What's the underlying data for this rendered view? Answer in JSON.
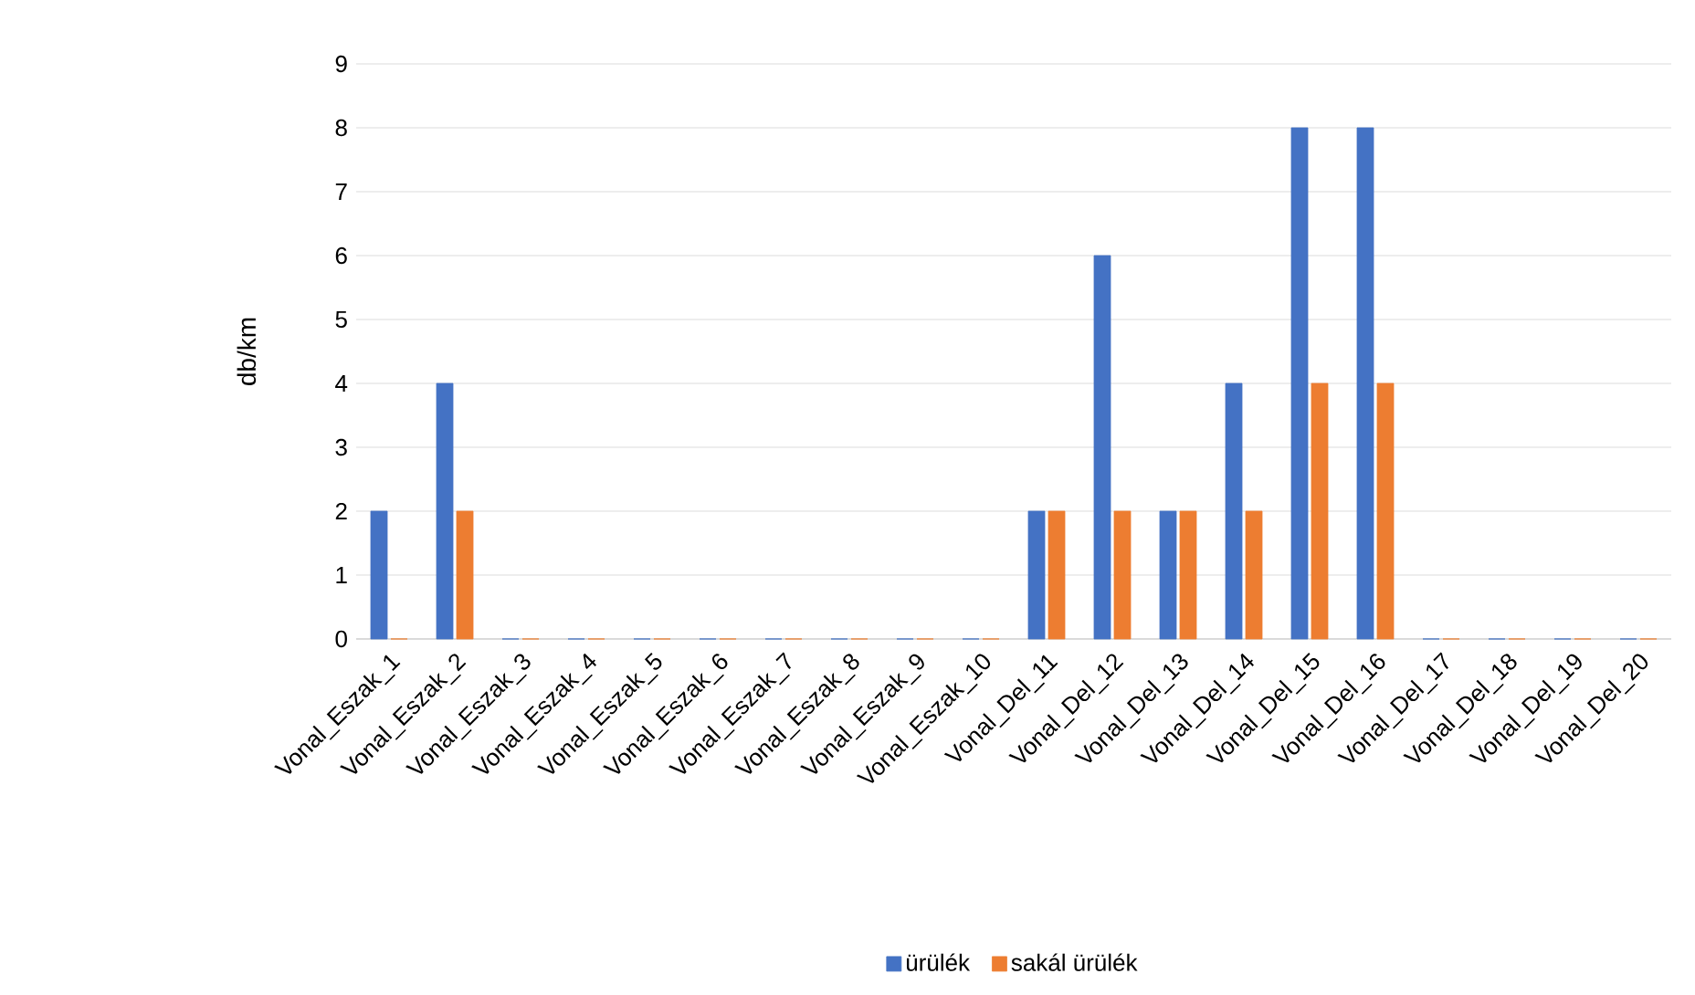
{
  "chart_data": {
    "type": "bar",
    "ylabel": "db/km",
    "categories": [
      "Vonal_Eszak_1",
      "Vonal_Eszak_2",
      "Vonal_Eszak_3",
      "Vonal_Eszak_4",
      "Vonal_Eszak_5",
      "Vonal_Eszak_6",
      "Vonal_Eszak_7",
      "Vonal_Eszak_8",
      "Vonal_Eszak_9",
      "Vonal_Eszak_10",
      "Vonal_Del_11",
      "Vonal_Del_12",
      "Vonal_Del_13",
      "Vonal_Del_14",
      "Vonal_Del_15",
      "Vonal_Del_16",
      "Vonal_Del_17",
      "Vonal_Del_18",
      "Vonal_Del_19",
      "Vonal_Del_20"
    ],
    "series": [
      {
        "name": "ürülék",
        "color": "#4472c4",
        "values": [
          2,
          4,
          0,
          0,
          0,
          0,
          0,
          0,
          0,
          0,
          2,
          6,
          2,
          4,
          8,
          8,
          0,
          0,
          0,
          0
        ]
      },
      {
        "name": "sakál ürülék",
        "color": "#ed7d31",
        "values": [
          0,
          2,
          0,
          0,
          0,
          0,
          0,
          0,
          0,
          0,
          2,
          2,
          2,
          2,
          4,
          4,
          0,
          0,
          0,
          0
        ]
      }
    ],
    "ylim": [
      0,
      9
    ],
    "yticks": [
      0,
      1,
      2,
      3,
      4,
      5,
      6,
      7,
      8,
      9
    ],
    "grid": "y",
    "legend": "bottom"
  }
}
